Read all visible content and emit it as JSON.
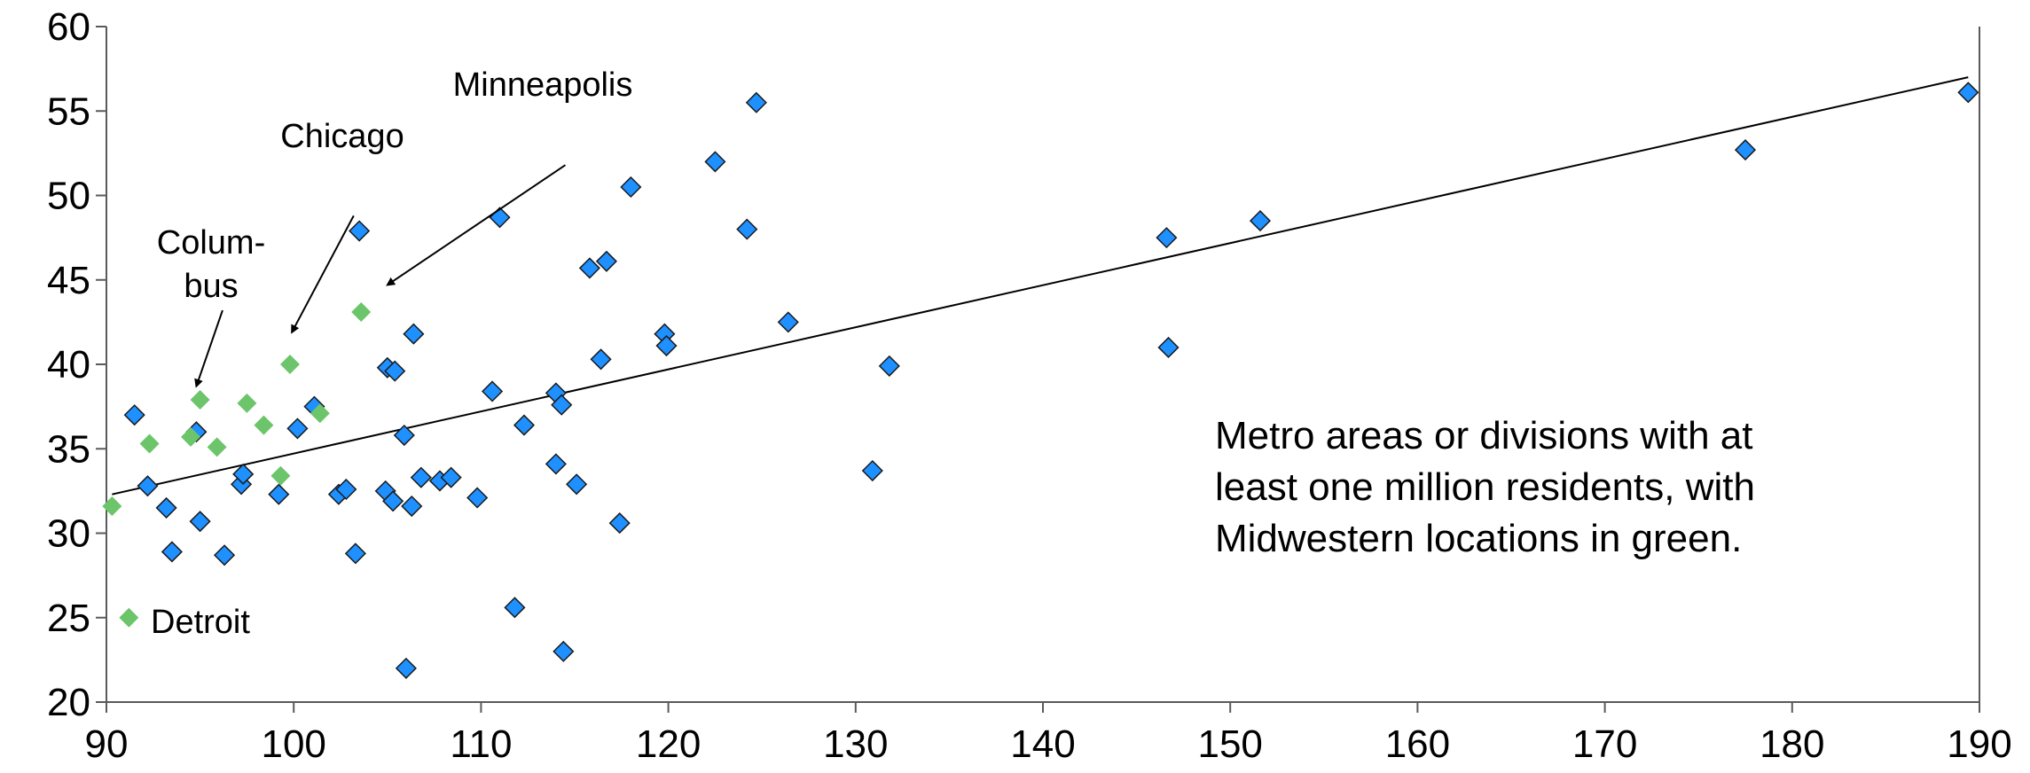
{
  "chart_data": {
    "type": "scatter",
    "title": "",
    "xlabel": "",
    "ylabel": "",
    "xlim": [
      90,
      190
    ],
    "ylim": [
      20,
      60
    ],
    "x_ticks": [
      "90",
      "100",
      "110",
      "120",
      "130",
      "140",
      "150",
      "160",
      "170",
      "180",
      "190"
    ],
    "y_ticks": [
      "20",
      "25",
      "30",
      "35",
      "40",
      "45",
      "50",
      "55",
      "60"
    ],
    "grid": false,
    "colors": {
      "blue": "#1e90ff",
      "green": "#6cc56a",
      "marker_edge": "#1a1a1a"
    },
    "series": [
      {
        "color": "#1e90ff",
        "points": [
          [
            91.5,
            37.0
          ],
          [
            92.2,
            32.8
          ],
          [
            93.2,
            31.5
          ],
          [
            93.5,
            28.9
          ],
          [
            94.8,
            36.0
          ],
          [
            95.0,
            30.7
          ],
          [
            96.3,
            28.7
          ],
          [
            97.2,
            32.9
          ],
          [
            97.3,
            33.5
          ],
          [
            99.2,
            32.3
          ],
          [
            100.2,
            36.2
          ],
          [
            101.1,
            37.5
          ],
          [
            102.4,
            32.3
          ],
          [
            102.8,
            32.6
          ],
          [
            103.3,
            28.8
          ],
          [
            103.5,
            47.9
          ],
          [
            104.9,
            32.5
          ],
          [
            105.0,
            39.8
          ],
          [
            105.3,
            31.9
          ],
          [
            105.4,
            39.6
          ],
          [
            105.9,
            35.8
          ],
          [
            106.0,
            22.0
          ],
          [
            106.3,
            31.6
          ],
          [
            106.4,
            41.8
          ],
          [
            106.8,
            33.3
          ],
          [
            107.8,
            33.1
          ],
          [
            108.4,
            33.3
          ],
          [
            109.8,
            32.1
          ],
          [
            110.6,
            38.4
          ],
          [
            111.0,
            48.7
          ],
          [
            111.8,
            25.6
          ],
          [
            112.3,
            36.4
          ],
          [
            114.0,
            38.3
          ],
          [
            114.0,
            34.1
          ],
          [
            114.3,
            37.6
          ],
          [
            114.4,
            23.0
          ],
          [
            115.1,
            32.9
          ],
          [
            115.8,
            45.7
          ],
          [
            116.4,
            40.3
          ],
          [
            116.7,
            46.1
          ],
          [
            117.4,
            30.6
          ],
          [
            118.0,
            50.5
          ],
          [
            119.8,
            41.8
          ],
          [
            119.9,
            41.1
          ],
          [
            122.5,
            52.0
          ],
          [
            124.2,
            48.0
          ],
          [
            124.7,
            55.5
          ],
          [
            126.4,
            42.5
          ],
          [
            130.9,
            33.7
          ],
          [
            131.8,
            39.9
          ],
          [
            146.6,
            47.5
          ],
          [
            146.7,
            41.0
          ],
          [
            151.6,
            48.5
          ],
          [
            177.5,
            52.7
          ],
          [
            189.4,
            56.1
          ]
        ]
      },
      {
        "color": "#6cc56a",
        "points": [
          [
            90.3,
            31.6
          ],
          [
            91.2,
            25.0
          ],
          [
            92.3,
            35.3
          ],
          [
            94.5,
            35.7
          ],
          [
            95.0,
            37.9
          ],
          [
            95.9,
            35.1
          ],
          [
            97.5,
            37.7
          ],
          [
            98.4,
            36.4
          ],
          [
            99.3,
            33.4
          ],
          [
            99.8,
            40.0
          ],
          [
            101.4,
            37.1
          ],
          [
            103.6,
            43.1
          ]
        ]
      }
    ],
    "trendline": {
      "x": [
        90.3,
        189.4
      ],
      "y": [
        32.3,
        57.0
      ]
    },
    "annotations": [
      {
        "key": "minneapolis",
        "lines": [
          "Minneapolis"
        ],
        "arrow_tail": [
          114.5,
          51.8
        ],
        "arrow_head": [
          105.0,
          44.7
        ]
      },
      {
        "key": "chicago",
        "lines": [
          "Chicago"
        ],
        "arrow_tail": [
          103.2,
          48.8
        ],
        "arrow_head": [
          99.9,
          41.9
        ]
      },
      {
        "key": "columbus",
        "lines": [
          "Colum-",
          "bus"
        ],
        "arrow_tail": [
          96.2,
          43.2
        ],
        "arrow_head": [
          94.8,
          38.7
        ]
      },
      {
        "key": "detroit",
        "lines": [
          "Detroit"
        ]
      }
    ],
    "note_lines": [
      "Metro areas or divisions with at",
      "least one million residents, with",
      "Midwestern locations in green."
    ]
  }
}
